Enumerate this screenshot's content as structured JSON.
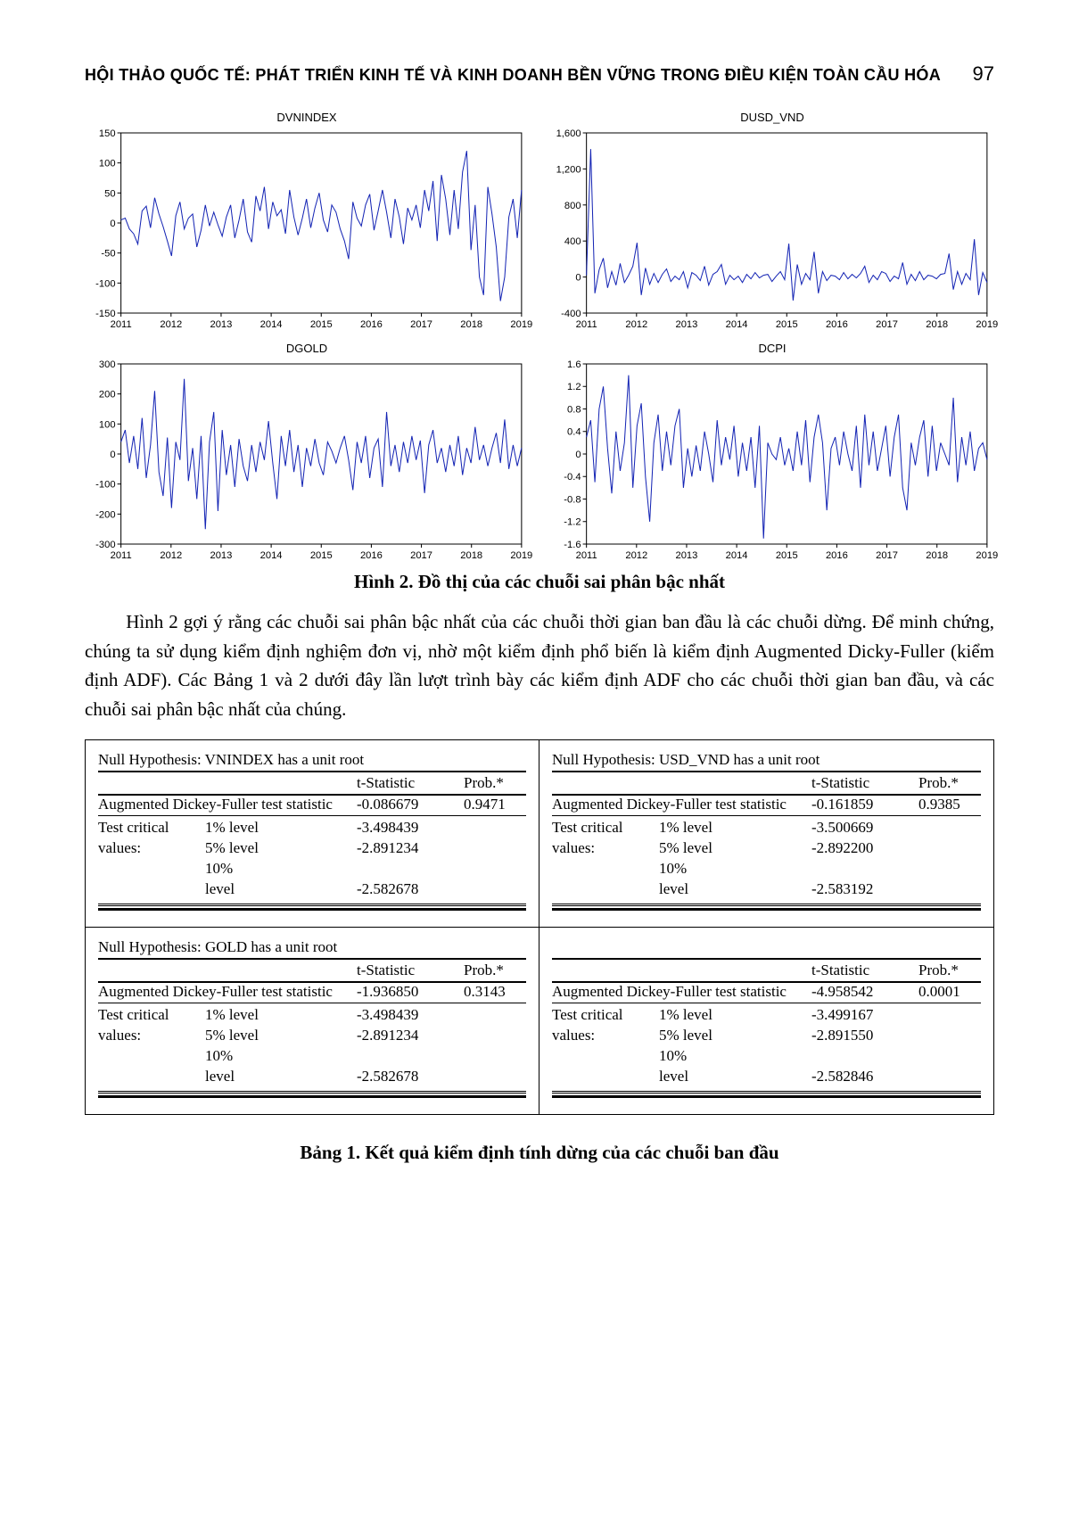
{
  "header": {
    "title": "HỘI THẢO QUỐC TẾ: PHÁT TRIỂN KINH TẾ VÀ KINH DOANH BỀN VỮNG TRONG ĐIỀU KIỆN TOÀN CẦU HÓA",
    "page_number": "97"
  },
  "charts": {
    "grid": "2x2",
    "x_years": [
      2011,
      2012,
      2013,
      2014,
      2015,
      2016,
      2017,
      2018,
      2019
    ],
    "line_color": "#1424b4",
    "line_width": 1.0,
    "axis_color": "#000000",
    "background_color": "#ffffff",
    "axis_font_size": 11,
    "title_font_size": 13,
    "panels": [
      {
        "key": "dvnindex",
        "title": "DVNINDEX",
        "ylim": [
          -150,
          150
        ],
        "ytick_step": 50,
        "yticks": [
          -150,
          -100,
          -50,
          0,
          50,
          100,
          150
        ],
        "values": [
          5,
          8,
          -10,
          -18,
          -35,
          20,
          28,
          -8,
          42,
          15,
          -6,
          -30,
          -55,
          12,
          35,
          -10,
          8,
          15,
          -40,
          -12,
          30,
          -5,
          18,
          -3,
          -22,
          10,
          30,
          -25,
          5,
          40,
          -15,
          -32,
          45,
          20,
          60,
          -10,
          35,
          12,
          22,
          -18,
          55,
          10,
          -20,
          8,
          40,
          -8,
          25,
          50,
          5,
          -15,
          30,
          18,
          -10,
          -30,
          -60,
          35,
          8,
          -5,
          30,
          48,
          -12,
          20,
          55,
          18,
          -25,
          40,
          10,
          -35,
          25,
          5,
          30,
          -8,
          55,
          20,
          70,
          -30,
          80,
          40,
          -20,
          55,
          -10,
          85,
          120,
          -45,
          30,
          -90,
          -120,
          60,
          15,
          -40,
          -130,
          -90,
          10,
          40,
          -25,
          55
        ]
      },
      {
        "key": "dusd_vnd",
        "title": "DUSD_VND",
        "ylim": [
          -400,
          1600
        ],
        "ytick_step": 400,
        "yticks": [
          -400,
          0,
          400,
          800,
          1200,
          1600
        ],
        "values": [
          20,
          1420,
          -180,
          80,
          210,
          -120,
          60,
          -90,
          150,
          -60,
          20,
          120,
          380,
          -200,
          100,
          -80,
          40,
          -60,
          30,
          90,
          -50,
          10,
          -30,
          60,
          -120,
          50,
          20,
          -40,
          120,
          -90,
          30,
          60,
          140,
          -80,
          20,
          -30,
          10,
          -60,
          30,
          -20,
          50,
          -10,
          20,
          30,
          -50,
          10,
          60,
          -30,
          370,
          -260,
          140,
          -80,
          40,
          -30,
          280,
          -180,
          60,
          -40,
          20,
          10,
          -30,
          50,
          -20,
          30,
          -10,
          40,
          120,
          -60,
          20,
          -30,
          60,
          40,
          -50,
          10,
          -20,
          160,
          -80,
          30,
          -40,
          60,
          -30,
          20,
          10,
          -20,
          30,
          40,
          260,
          -140,
          60,
          -80,
          40,
          -30,
          420,
          -200,
          50,
          -60
        ]
      },
      {
        "key": "dgold",
        "title": "DGOLD",
        "ylim": [
          -300,
          300
        ],
        "ytick_step": 100,
        "yticks": [
          -300,
          -200,
          -100,
          0,
          100,
          200,
          300
        ],
        "values": [
          40,
          80,
          -30,
          60,
          -50,
          120,
          -80,
          30,
          210,
          -60,
          -140,
          55,
          -180,
          40,
          -20,
          250,
          -90,
          20,
          -150,
          60,
          -250,
          40,
          140,
          -190,
          80,
          -70,
          30,
          -110,
          50,
          -40,
          -90,
          30,
          -60,
          40,
          -20,
          110,
          -30,
          -150,
          60,
          -40,
          80,
          -60,
          30,
          -110,
          20,
          -40,
          50,
          -30,
          -70,
          40,
          10,
          -30,
          20,
          60,
          -20,
          -120,
          40,
          -30,
          60,
          -80,
          20,
          50,
          -110,
          140,
          -40,
          30,
          -60,
          40,
          -30,
          60,
          -20,
          45,
          -130,
          30,
          80,
          -30,
          20,
          -60,
          30,
          -40,
          60,
          -70,
          20,
          -30,
          90,
          -20,
          30,
          -40,
          20,
          70,
          -30,
          115,
          -50,
          30,
          -40,
          20
        ]
      },
      {
        "key": "dcpi",
        "title": "DCPI",
        "ylim": [
          -1.6,
          1.6
        ],
        "ytick_step": 0.4,
        "yticks": [
          -1.6,
          -1.2,
          -0.8,
          -0.4,
          0.0,
          0.4,
          0.8,
          1.2,
          1.6
        ],
        "values": [
          0.3,
          0.6,
          -0.5,
          0.8,
          1.2,
          0.1,
          -0.7,
          0.4,
          -0.3,
          0.2,
          1.4,
          -0.6,
          0.5,
          0.9,
          -0.4,
          -1.2,
          0.2,
          0.7,
          -0.3,
          0.4,
          -0.2,
          0.5,
          0.8,
          -0.6,
          0.1,
          -0.4,
          0.15,
          -0.3,
          0.4,
          0.0,
          -0.5,
          0.6,
          -0.2,
          0.3,
          -0.1,
          0.5,
          -0.4,
          0.2,
          -0.3,
          0.3,
          -0.6,
          0.5,
          -1.5,
          0.2,
          0.0,
          -0.1,
          0.3,
          -0.2,
          0.1,
          -0.3,
          0.4,
          -0.2,
          0.6,
          -0.5,
          0.3,
          0.7,
          0.2,
          -1.0,
          0.1,
          0.3,
          -0.2,
          0.4,
          0.0,
          -0.3,
          0.5,
          -0.6,
          0.7,
          -0.2,
          0.4,
          -0.3,
          0.1,
          0.5,
          -0.4,
          0.3,
          0.7,
          -0.6,
          -1.0,
          0.2,
          -0.2,
          0.3,
          0.6,
          -0.4,
          0.5,
          -0.3,
          0.2,
          0.0,
          -0.2,
          1.0,
          -0.5,
          0.3,
          -0.2,
          0.4,
          -0.3,
          0.1,
          0.2,
          -0.1
        ]
      }
    ]
  },
  "figure_caption": "Hình 2. Đồ thị của các chuỗi sai phân bậc nhất",
  "body_paragraph": "Hình 2 gợi ý rằng các chuỗi sai phân bậc nhất của các chuỗi thời gian ban đầu là các chuỗi dừng. Để minh chứng, chúng ta sử dụng kiểm định nghiệm đơn vị, nhờ một kiểm định phổ biến là kiểm định Augmented Dicky-Fuller (kiểm định ADF). Các Bảng 1 và 2 dưới đây lần lượt trình bày các kiểm định ADF cho các chuỗi thời gian ban đầu, và các chuỗi sai phân bậc nhất của chúng.",
  "adf_tables": {
    "col_headers": {
      "tstat": "t-Statistic",
      "prob": "Prob.*"
    },
    "adf_label": "Augmented Dickey-Fuller test statistic",
    "crit_label": "Test critical values:",
    "level_labels": [
      "1% level",
      "5% level",
      "10% level"
    ],
    "cells": [
      {
        "null_hypothesis": "Null Hypothesis: VNINDEX has a unit root",
        "tstat": "-0.086679",
        "prob": "0.9471",
        "crit": [
          "-3.498439",
          "-2.891234",
          "-2.582678"
        ]
      },
      {
        "null_hypothesis": "Null Hypothesis: USD_VND has a unit root",
        "tstat": "-0.161859",
        "prob": "0.9385",
        "crit": [
          "-3.500669",
          "-2.892200",
          "-2.583192"
        ]
      },
      {
        "null_hypothesis": "Null Hypothesis: GOLD has a unit root",
        "tstat": "-1.936850",
        "prob": "0.3143",
        "crit": [
          "-3.498439",
          "-2.891234",
          "-2.582678"
        ]
      },
      {
        "null_hypothesis": "",
        "tstat": "-4.958542",
        "prob": "0.0001",
        "crit": [
          "-3.499167",
          "-2.891550",
          "-2.582846"
        ]
      }
    ]
  },
  "table_caption": "Bảng 1. Kết quả kiểm định tính dừng của các chuỗi ban đầu"
}
